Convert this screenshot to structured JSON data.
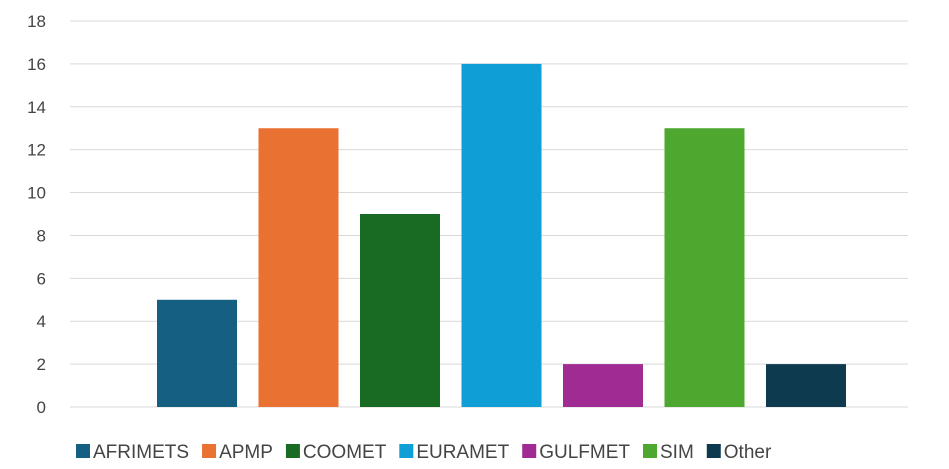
{
  "chart_data": {
    "type": "bar",
    "title": "",
    "xlabel": "",
    "ylabel": "",
    "ylim": [
      0,
      18
    ],
    "ytick_step": 2,
    "grid": true,
    "legend_position": "bottom",
    "categories": [
      "AFRIMETS",
      "APMP",
      "COOMET",
      "EURAMET",
      "GULFMET",
      "SIM",
      "Other"
    ],
    "values": [
      5,
      13,
      9,
      16,
      2,
      13,
      2
    ],
    "colors": [
      "#156082",
      "#E97132",
      "#196B24",
      "#0F9ED5",
      "#A02B93",
      "#4EA72E",
      "#0E3A4F"
    ]
  }
}
